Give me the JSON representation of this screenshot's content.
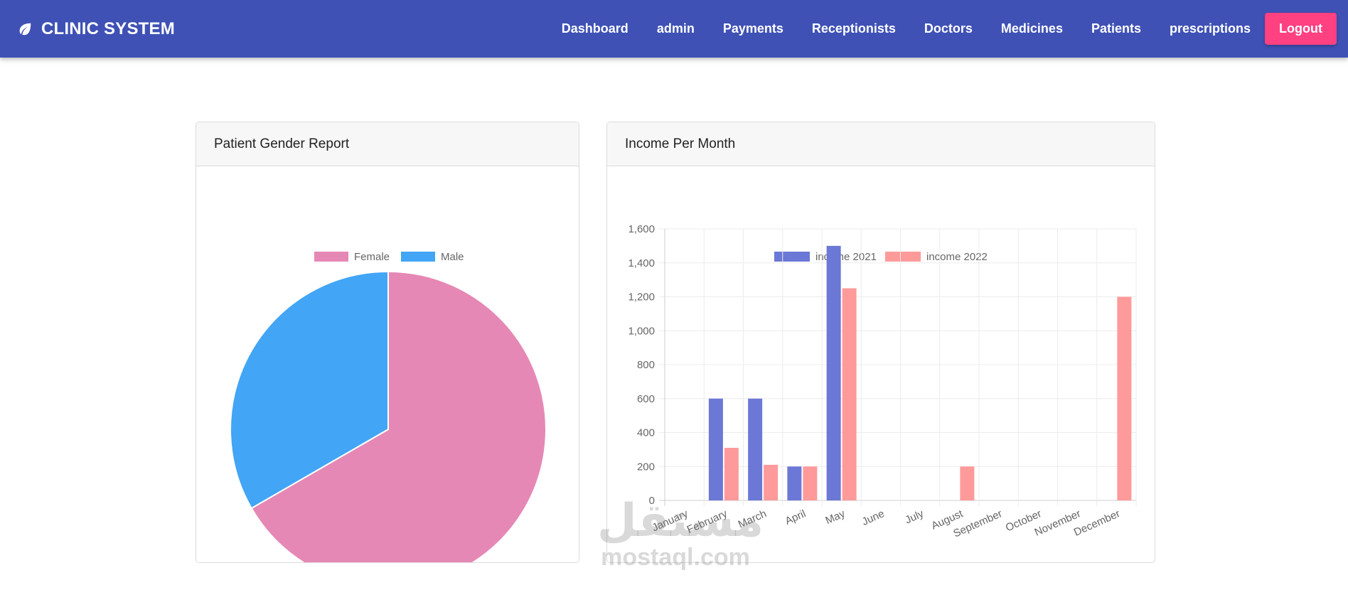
{
  "navbar": {
    "brand": "CLINIC SYSTEM",
    "links": [
      "Dashboard",
      "admin",
      "Payments",
      "Receptionists",
      "Doctors",
      "Medicines",
      "Patients",
      "prescriptions"
    ],
    "logout_label": "Logout",
    "colors": {
      "bar": "#3f51b5",
      "logout": "#ff4081"
    }
  },
  "cards": {
    "gender_title": "Patient Gender Report",
    "income_title": "Income Per Month"
  },
  "chart_data": [
    {
      "type": "pie",
      "title": "Patient Gender Report",
      "labels": [
        "Female",
        "Male"
      ],
      "values": [
        2,
        1
      ],
      "colors": [
        "#e688b5",
        "#42a5f5"
      ],
      "legend": "top"
    },
    {
      "type": "bar",
      "title": "Income Per Month",
      "categories": [
        "January",
        "February",
        "March",
        "April",
        "May",
        "June",
        "July",
        "August",
        "September",
        "October",
        "November",
        "December"
      ],
      "series": [
        {
          "name": "income 2021",
          "color": "#6b78d6",
          "values": [
            0,
            600,
            600,
            200,
            1500,
            0,
            0,
            0,
            0,
            0,
            0,
            0
          ]
        },
        {
          "name": "income 2022",
          "color": "#ff9a9a",
          "values": [
            0,
            310,
            210,
            200,
            1250,
            0,
            0,
            200,
            0,
            0,
            0,
            1200
          ]
        }
      ],
      "ylim": [
        0,
        1600
      ],
      "yticks": [
        "0",
        "200",
        "400",
        "600",
        "800",
        "1,000",
        "1,200",
        "1,400",
        "1,600"
      ],
      "grid": true,
      "legend": "top"
    }
  ],
  "watermark": {
    "arabic": "مستقل",
    "latin": "mostaql.com"
  }
}
